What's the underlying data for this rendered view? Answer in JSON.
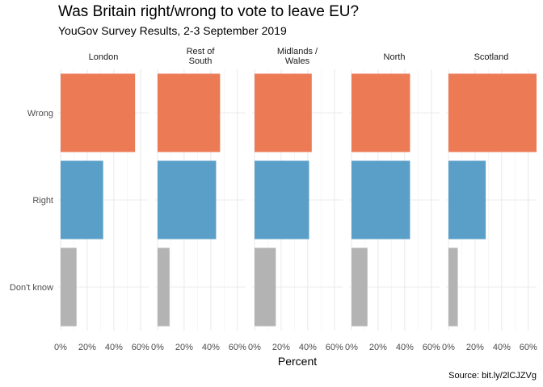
{
  "chart_data": {
    "type": "bar",
    "orientation": "horizontal",
    "title": "Was Britain right/wrong to vote to leave EU?",
    "subtitle": "YouGov Survey Results, 2-3 September 2019",
    "caption": "Source: bit.ly/2lCJZVg",
    "xlabel": "Percent",
    "ylabel": "",
    "xlim": [
      0,
      65
    ],
    "x_ticks": [
      "0%",
      "20%",
      "40%",
      "60%"
    ],
    "categories": [
      "Wrong",
      "Right",
      "Don't know"
    ],
    "category_colors": [
      "#EB7A55",
      "#5A9FC8",
      "#B3B3B3"
    ],
    "grid": true,
    "legend": "none",
    "facets": [
      {
        "label": [
          "London"
        ],
        "values": [
          56,
          32,
          12
        ]
      },
      {
        "label": [
          "Rest of",
          "South"
        ],
        "values": [
          47,
          44,
          9
        ]
      },
      {
        "label": [
          "Midlands /",
          "Wales"
        ],
        "values": [
          43,
          41,
          16
        ]
      },
      {
        "label": [
          "North"
        ],
        "values": [
          44,
          44,
          12
        ]
      },
      {
        "label": [
          "Scotland"
        ],
        "values": [
          68,
          28,
          7
        ]
      }
    ]
  }
}
